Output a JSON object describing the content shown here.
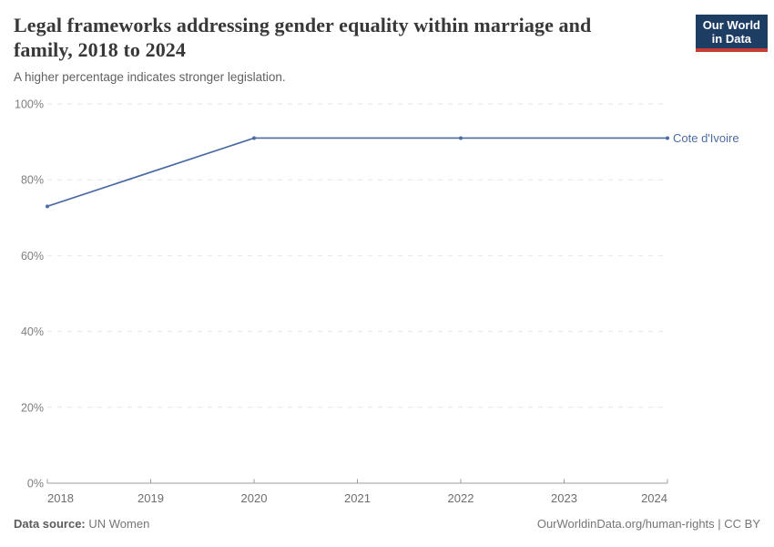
{
  "header": {
    "title_line1": "Legal frameworks addressing gender equality within marriage and",
    "title_line2": "family, 2018 to 2024",
    "subtitle": "A higher percentage indicates stronger legislation."
  },
  "logo": {
    "line1": "Our World",
    "line2": "in Data"
  },
  "colors": {
    "series_line": "#4c6ba3",
    "logo_navy": "#1d3d63",
    "logo_red": "#c93c34",
    "gridline": "#e6e6e6",
    "axis": "#9c9c9c",
    "tick_text": "#7e7e7e"
  },
  "chart_data": {
    "type": "line",
    "title": "Legal frameworks addressing gender equality within marriage and family, 2018 to 2024",
    "subtitle": "A higher percentage indicates stronger legislation.",
    "x": [
      2018,
      2020,
      2022,
      2024
    ],
    "series": [
      {
        "name": "Cote d'Ivoire",
        "values": [
          73,
          91,
          91,
          91
        ],
        "color": "#4c6ba3"
      }
    ],
    "xlabel": "",
    "ylabel": "",
    "xlim": [
      2018,
      2024
    ],
    "ylim": [
      0,
      100
    ],
    "xticks": [
      2018,
      2019,
      2020,
      2021,
      2022,
      2023,
      2024
    ],
    "ytick_values": [
      0,
      20,
      40,
      60,
      80,
      100
    ],
    "ytick_labels": [
      "0%",
      "20%",
      "40%",
      "60%",
      "80%",
      "100%"
    ],
    "grid": "horizontal-dashed",
    "legend": "end-of-line-label",
    "marker": "point-on-data-years"
  },
  "footer": {
    "source_label": "Data source:",
    "source_value": "UN Women",
    "right_text": "OurWorldinData.org/human-rights | CC BY"
  }
}
